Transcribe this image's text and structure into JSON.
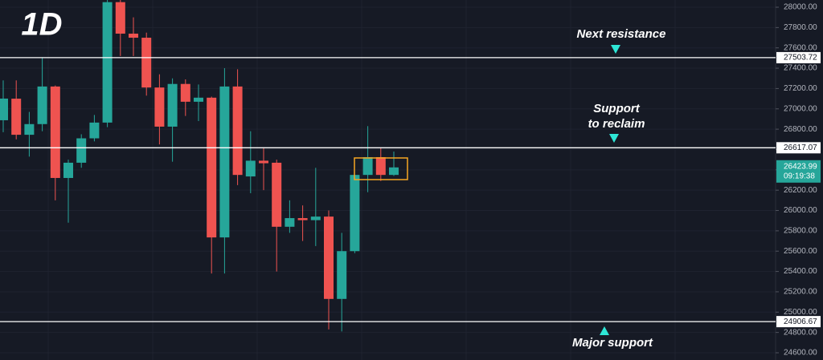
{
  "chart_data": {
    "type": "candlestick",
    "title": "1D",
    "series": [
      {
        "name": null,
        "up_color": "#26a69a",
        "down_color": "#ef5350",
        "open": [
          26888,
          27100,
          26745,
          26850,
          27220,
          26320,
          26470,
          26710,
          26865,
          28050,
          27740,
          27700,
          27210,
          26825,
          27245,
          27070,
          27110,
          25735,
          27220,
          26335,
          26490,
          26470,
          25840,
          25925,
          25905,
          25940,
          25130,
          25600,
          26350,
          26525,
          26350
        ],
        "high": [
          27280,
          27280,
          26970,
          27500,
          27230,
          26500,
          26750,
          26940,
          28300,
          28300,
          27900,
          27750,
          27340,
          27300,
          27290,
          27240,
          27120,
          27400,
          27390,
          26780,
          26620,
          26500,
          26100,
          26050,
          26420,
          26000,
          25780,
          26350,
          26830,
          26620,
          26580
        ],
        "low": [
          26770,
          26700,
          26530,
          26780,
          26100,
          25880,
          26420,
          26680,
          26820,
          27520,
          27520,
          27130,
          26650,
          26480,
          26930,
          26880,
          25380,
          25380,
          26250,
          26170,
          26200,
          25400,
          25780,
          25700,
          25650,
          24830,
          24810,
          25580,
          26180,
          26290,
          26340
        ],
        "close": [
          27101,
          26745,
          26850,
          27220,
          26320,
          26470,
          26710,
          26865,
          28050,
          27740,
          27700,
          27210,
          26825,
          27245,
          27070,
          27110,
          25735,
          27220,
          26350,
          26490,
          26465,
          25840,
          25925,
          25905,
          25940,
          25130,
          25600,
          26350,
          26525,
          26350,
          26424
        ]
      }
    ],
    "ylim": [
      24529,
      28071
    ],
    "yticks": [
      {
        "value": 24600,
        "label": "24600.00"
      },
      {
        "value": 24800,
        "label": "24800.00"
      },
      {
        "value": 25000,
        "label": "25000.00"
      },
      {
        "value": 25200,
        "label": "25200.00"
      },
      {
        "value": 25400,
        "label": "25400.00"
      },
      {
        "value": 25600,
        "label": "25600.00"
      },
      {
        "value": 25800,
        "label": "25800.00"
      },
      {
        "value": 26000,
        "label": "26000.00"
      },
      {
        "value": 26200,
        "label": "26200.00"
      },
      {
        "value": 26400,
        "label": "26400.00"
      },
      {
        "value": 26600,
        "label": "26600.00"
      },
      {
        "value": 26800,
        "label": "26800.00"
      },
      {
        "value": 27000,
        "label": "27000.00"
      },
      {
        "value": 27200,
        "label": "27200.00"
      },
      {
        "value": 27400,
        "label": "27400.00"
      },
      {
        "value": 27600,
        "label": "27600.00"
      },
      {
        "value": 27800,
        "label": "27800.00"
      },
      {
        "value": 28000,
        "label": "28000.00"
      }
    ],
    "levels": [
      27503.72,
      26617.07,
      24906.67
    ],
    "last_price": 26423.99,
    "countdown": "09:19:38",
    "annotations": [
      "Next resistance",
      "Support",
      "to reclaim",
      "Major support"
    ],
    "grid": true
  }
}
